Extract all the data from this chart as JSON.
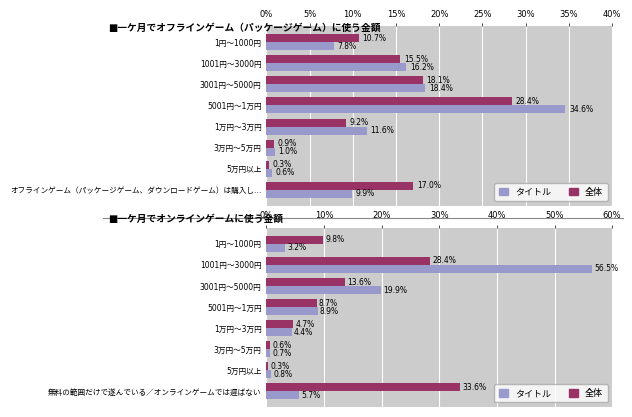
{
  "chart1": {
    "title": "■一ケ月でオフラインゲーム（パッケージゲーム）に使う金額",
    "categories": [
      "1円～1000円",
      "1001円～3000円",
      "3001円～5000円",
      "5001円～1万円",
      "1万円～3万円",
      "3万円～5万円",
      "5万円以上",
      "オフラインゲーム（パッケージゲーム、ダウンロードゲーム）は購入し…"
    ],
    "title_values": [
      7.8,
      16.2,
      18.4,
      34.6,
      11.6,
      1.0,
      0.6,
      9.9
    ],
    "all_values": [
      10.7,
      15.5,
      18.1,
      28.4,
      9.2,
      0.9,
      0.3,
      17.0
    ],
    "xlim": 40,
    "xticks": [
      0,
      5,
      10,
      15,
      20,
      25,
      30,
      35,
      40
    ]
  },
  "chart2": {
    "title": "■一ケ月でオンラインゲームに使う金額",
    "categories": [
      "1円～1000円",
      "1001円～3000円",
      "3001円～5000円",
      "5001円～1万円",
      "1万円～3万円",
      "3万円～5万円",
      "5万円以上",
      "無料の範囲だけで遂んでいる／オンラインゲームでは遲ばない"
    ],
    "title_values": [
      3.2,
      56.5,
      19.9,
      8.9,
      4.4,
      0.7,
      0.8,
      5.7
    ],
    "all_values": [
      9.8,
      28.4,
      13.6,
      8.7,
      4.7,
      0.6,
      0.3,
      33.6
    ],
    "xlim": 60,
    "xticks": [
      0,
      10,
      20,
      30,
      40,
      50,
      60
    ]
  },
  "color_title": "#9999cc",
  "color_all": "#993366",
  "bar_height": 0.38,
  "label_title": "タイトル",
  "label_all": "全体",
  "bg_color": "#cccccc",
  "fig_bg": "#ffffff",
  "white_bg": "#ffffff"
}
